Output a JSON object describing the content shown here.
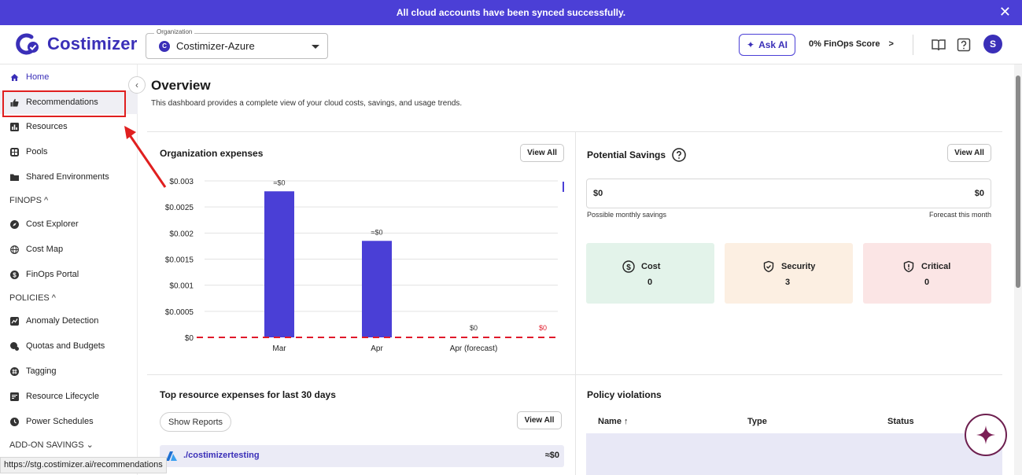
{
  "banner": {
    "message": "All cloud accounts have been synced successfully.",
    "close_glyph": "✕"
  },
  "logo": {
    "text": "Costimizer",
    "brand_color": "#3a2fb8"
  },
  "org": {
    "legend": "Organization",
    "badge": "C",
    "value": "Costimizer-Azure"
  },
  "header": {
    "ask_ai": "Ask AI",
    "finops_score": "0% FinOps Score",
    "finops_arrow": ">",
    "avatar": "S"
  },
  "sidebar": {
    "items": [
      {
        "label": "Home",
        "icon": "home-icon"
      },
      {
        "label": "Recommendations",
        "icon": "thumbs-up-icon"
      },
      {
        "label": "Resources",
        "icon": "bar-chart-icon"
      },
      {
        "label": "Pools",
        "icon": "pools-icon"
      },
      {
        "label": "Shared Environments",
        "icon": "folder-icon"
      }
    ],
    "finops_section": "FINOPS ^",
    "finops_items": [
      {
        "label": "Cost Explorer",
        "icon": "compass-icon"
      },
      {
        "label": "Cost Map",
        "icon": "globe-icon"
      },
      {
        "label": "FinOps Portal",
        "icon": "dollar-circle-icon"
      }
    ],
    "policies_section": "POLICIES ^",
    "policies_items": [
      {
        "label": "Anomaly Detection",
        "icon": "anomaly-icon"
      },
      {
        "label": "Quotas and Budgets",
        "icon": "quota-icon"
      },
      {
        "label": "Tagging",
        "icon": "hash-icon"
      },
      {
        "label": "Resource Lifecycle",
        "icon": "lifecycle-icon"
      },
      {
        "label": "Power Schedules",
        "icon": "clock-icon"
      }
    ],
    "addon_section": "ADD-ON SAVINGS ⌄"
  },
  "overview": {
    "title": "Overview",
    "subtitle": "This dashboard provides a complete view of your cloud costs, savings, and usage trends."
  },
  "org_expenses": {
    "title": "Organization expenses",
    "view_all": "View All"
  },
  "chart_data": {
    "type": "bar",
    "categories": [
      "Mar",
      "Apr",
      "Apr (forecast)"
    ],
    "values": [
      0.0028,
      0.00185,
      0
    ],
    "data_labels": [
      "≈$0",
      "≈$0",
      "$0"
    ],
    "extra_label": "$0",
    "yticks": [
      "$0.003",
      "$0.0025",
      "$0.002",
      "$0.0015",
      "$0.001",
      "$0.0005",
      "$0"
    ],
    "ylim": [
      0,
      0.003
    ],
    "bar_color": "#4a3fd6",
    "baseline_color": "#e0192a"
  },
  "potential_savings": {
    "title": "Potential Savings",
    "view_all": "View All",
    "left_value": "$0",
    "right_value": "$0",
    "left_note": "Possible monthly savings",
    "right_note": "Forecast this month",
    "cards": [
      {
        "label": "Cost",
        "value": "0",
        "bg": "#e3f3ea",
        "icon": "dollar-circle-icon"
      },
      {
        "label": "Security",
        "value": "3",
        "bg": "#fcefe2",
        "icon": "shield-check-icon"
      },
      {
        "label": "Critical",
        "value": "0",
        "bg": "#fbe5e5",
        "icon": "shield-alert-icon"
      }
    ]
  },
  "top_resources": {
    "title": "Top resource expenses for last 30 days",
    "show_reports": "Show Reports",
    "view_all": "View All",
    "rows": [
      {
        "name": "./costimizertesting",
        "value": "≈$0"
      }
    ]
  },
  "policy_violations": {
    "title": "Policy violations",
    "columns": [
      "Name ↑",
      "Type",
      "Status"
    ]
  },
  "statusbar": {
    "url": "https://stg.costimizer.ai/recommendations"
  }
}
